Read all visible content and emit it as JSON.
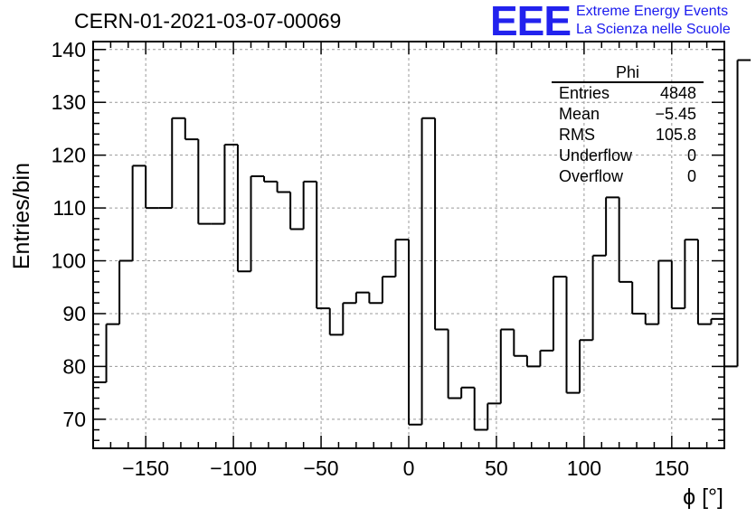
{
  "chart_data": {
    "type": "bar",
    "title": "CERN-01-2021-03-07-00069",
    "xlabel": "ϕ [°]",
    "ylabel": "Entries/bin",
    "xlim": [
      -180,
      180
    ],
    "ylim": [
      64.5,
      141.5
    ],
    "xticks": [
      -150,
      -100,
      -50,
      0,
      50,
      100,
      150
    ],
    "xtick_labels": [
      "−150",
      "−100",
      "−50",
      "0",
      "50",
      "100",
      "150"
    ],
    "yticks": [
      70,
      80,
      90,
      100,
      110,
      120,
      130,
      140
    ],
    "bin_width": 7.5,
    "bin_edges_start": -180,
    "values": [
      77,
      88,
      100,
      118,
      110,
      110,
      127,
      123,
      107,
      107,
      122,
      98,
      116,
      115,
      113,
      106,
      115,
      91,
      86,
      92,
      94,
      92,
      97,
      104,
      69,
      127,
      87,
      74,
      76,
      68,
      73,
      87,
      82,
      80,
      83,
      97,
      75,
      85,
      101,
      112,
      96,
      90,
      88,
      100,
      91,
      104,
      88,
      89,
      80,
      138
    ],
    "grid": true,
    "legend": "none"
  },
  "stats_box": {
    "title": "Phi",
    "rows": [
      {
        "label": "Entries",
        "value": "4848"
      },
      {
        "label": "Mean",
        "value": "−5.45"
      },
      {
        "label": "RMS",
        "value": "105.8"
      },
      {
        "label": "Underflow",
        "value": "0"
      },
      {
        "label": "Overflow",
        "value": "0"
      }
    ]
  },
  "logo": {
    "mark": "EEE",
    "line1": "Extreme Energy Events",
    "line2": "La Scienza nelle Scuole"
  }
}
